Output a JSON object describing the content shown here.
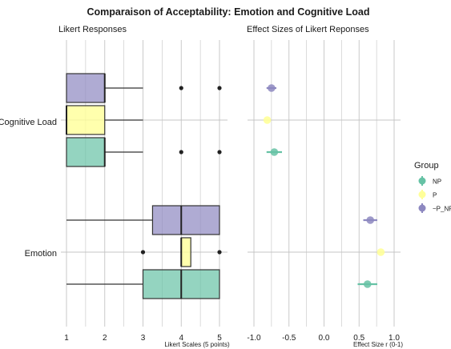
{
  "chart_data": {
    "title": "Comparaison of Acceptability: Emotion and Cognitive Load",
    "legend": {
      "title": "Group",
      "placement": "right",
      "items": [
        {
          "name": "NP",
          "color": "#66c2a5"
        },
        {
          "name": "P",
          "color": "#ffff99"
        },
        {
          "name": "~P_NP",
          "color": "#8d88c0"
        }
      ]
    },
    "categories": [
      "Cognitive Load",
      "Emotion"
    ],
    "panels": [
      {
        "subtitle": "Likert Responses",
        "type": "boxplot",
        "xlabel": "Likert Scales (5 points)",
        "xlim": [
          0.9,
          5.25
        ],
        "xticks": [
          1,
          2,
          3,
          4,
          5
        ],
        "grid": true,
        "boxes": [
          {
            "category": "Cognitive Load",
            "group": "~P_NP",
            "whisker_low": 1,
            "q1": 1,
            "median": 2,
            "q3": 2,
            "whisker_high": 3,
            "outliers": [
              4,
              5
            ]
          },
          {
            "category": "Cognitive Load",
            "group": "P",
            "whisker_low": 1,
            "q1": 1,
            "median": 1,
            "q3": 2,
            "whisker_high": 3,
            "outliers": []
          },
          {
            "category": "Cognitive Load",
            "group": "NP",
            "whisker_low": 1,
            "q1": 1,
            "median": 2,
            "q3": 2,
            "whisker_high": 3,
            "outliers": [
              4,
              5
            ]
          },
          {
            "category": "Emotion",
            "group": "~P_NP",
            "whisker_low": 1,
            "q1": 3.25,
            "median": 4,
            "q3": 5,
            "whisker_high": 5,
            "outliers": []
          },
          {
            "category": "Emotion",
            "group": "P",
            "whisker_low": 4,
            "q1": 4,
            "median": 4,
            "q3": 4.25,
            "whisker_high": 4.25,
            "outliers": [
              3,
              5
            ]
          },
          {
            "category": "Emotion",
            "group": "NP",
            "whisker_low": 1,
            "q1": 3,
            "median": 4,
            "q3": 5,
            "whisker_high": 5,
            "outliers": []
          }
        ]
      },
      {
        "subtitle": "Effect Sizes of Likert Reponses",
        "type": "scatter",
        "xlabel": "Effect Size r (0-1)",
        "xlim": [
          -1.1,
          1.1
        ],
        "xticks": [
          -1.0,
          -0.5,
          0.0,
          0.5,
          1.0
        ],
        "xtick_labels": [
          "-1.0",
          "-0.5",
          "0.0",
          "0.5",
          "1.0"
        ],
        "grid": true,
        "points": [
          {
            "category": "Cognitive Load",
            "group": "~P_NP",
            "value": -0.75,
            "ci": [
              -0.82,
              -0.68
            ]
          },
          {
            "category": "Cognitive Load",
            "group": "P",
            "value": -0.81,
            "ci": [
              -0.81,
              -0.81
            ]
          },
          {
            "category": "Cognitive Load",
            "group": "NP",
            "value": -0.71,
            "ci": [
              -0.82,
              -0.6
            ]
          },
          {
            "category": "Emotion",
            "group": "~P_NP",
            "value": 0.66,
            "ci": [
              0.56,
              0.76
            ]
          },
          {
            "category": "Emotion",
            "group": "P",
            "value": 0.81,
            "ci": [
              0.81,
              0.81
            ]
          },
          {
            "category": "Emotion",
            "group": "NP",
            "value": 0.62,
            "ci": [
              0.48,
              0.76
            ]
          }
        ]
      }
    ]
  }
}
